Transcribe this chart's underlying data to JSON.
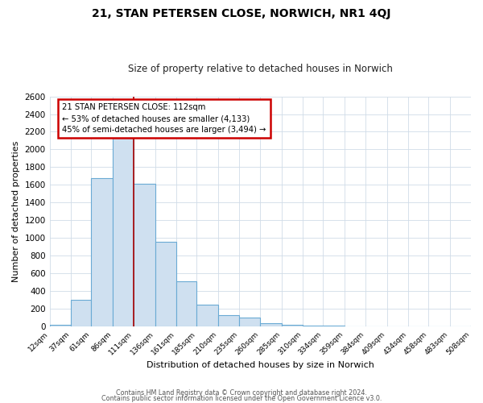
{
  "title": "21, STAN PETERSEN CLOSE, NORWICH, NR1 4QJ",
  "subtitle": "Size of property relative to detached houses in Norwich",
  "xlabel": "Distribution of detached houses by size in Norwich",
  "ylabel": "Number of detached properties",
  "bar_color": "#cfe0f0",
  "bar_edge_color": "#6aaad4",
  "background_color": "#ffffff",
  "grid_color": "#d0dce8",
  "annotation_box_color": "#ffffff",
  "annotation_border_color": "#cc0000",
  "marker_line_color": "#aa0000",
  "marker_value": 111,
  "annotation_title": "21 STAN PETERSEN CLOSE: 112sqm",
  "annotation_line1": "← 53% of detached houses are smaller (4,133)",
  "annotation_line2": "45% of semi-detached houses are larger (3,494) →",
  "bins": [
    12,
    37,
    61,
    86,
    111,
    136,
    161,
    185,
    210,
    235,
    260,
    285,
    310,
    334,
    359,
    384,
    409,
    434,
    458,
    483,
    508
  ],
  "counts": [
    22,
    300,
    1680,
    2150,
    1610,
    960,
    510,
    245,
    130,
    100,
    35,
    22,
    7,
    5,
    4,
    3,
    3,
    2,
    2,
    2,
    15
  ],
  "ylim": [
    0,
    2600
  ],
  "yticks": [
    0,
    200,
    400,
    600,
    800,
    1000,
    1200,
    1400,
    1600,
    1800,
    2000,
    2200,
    2400,
    2600
  ],
  "footer1": "Contains HM Land Registry data © Crown copyright and database right 2024.",
  "footer2": "Contains public sector information licensed under the Open Government Licence v3.0."
}
